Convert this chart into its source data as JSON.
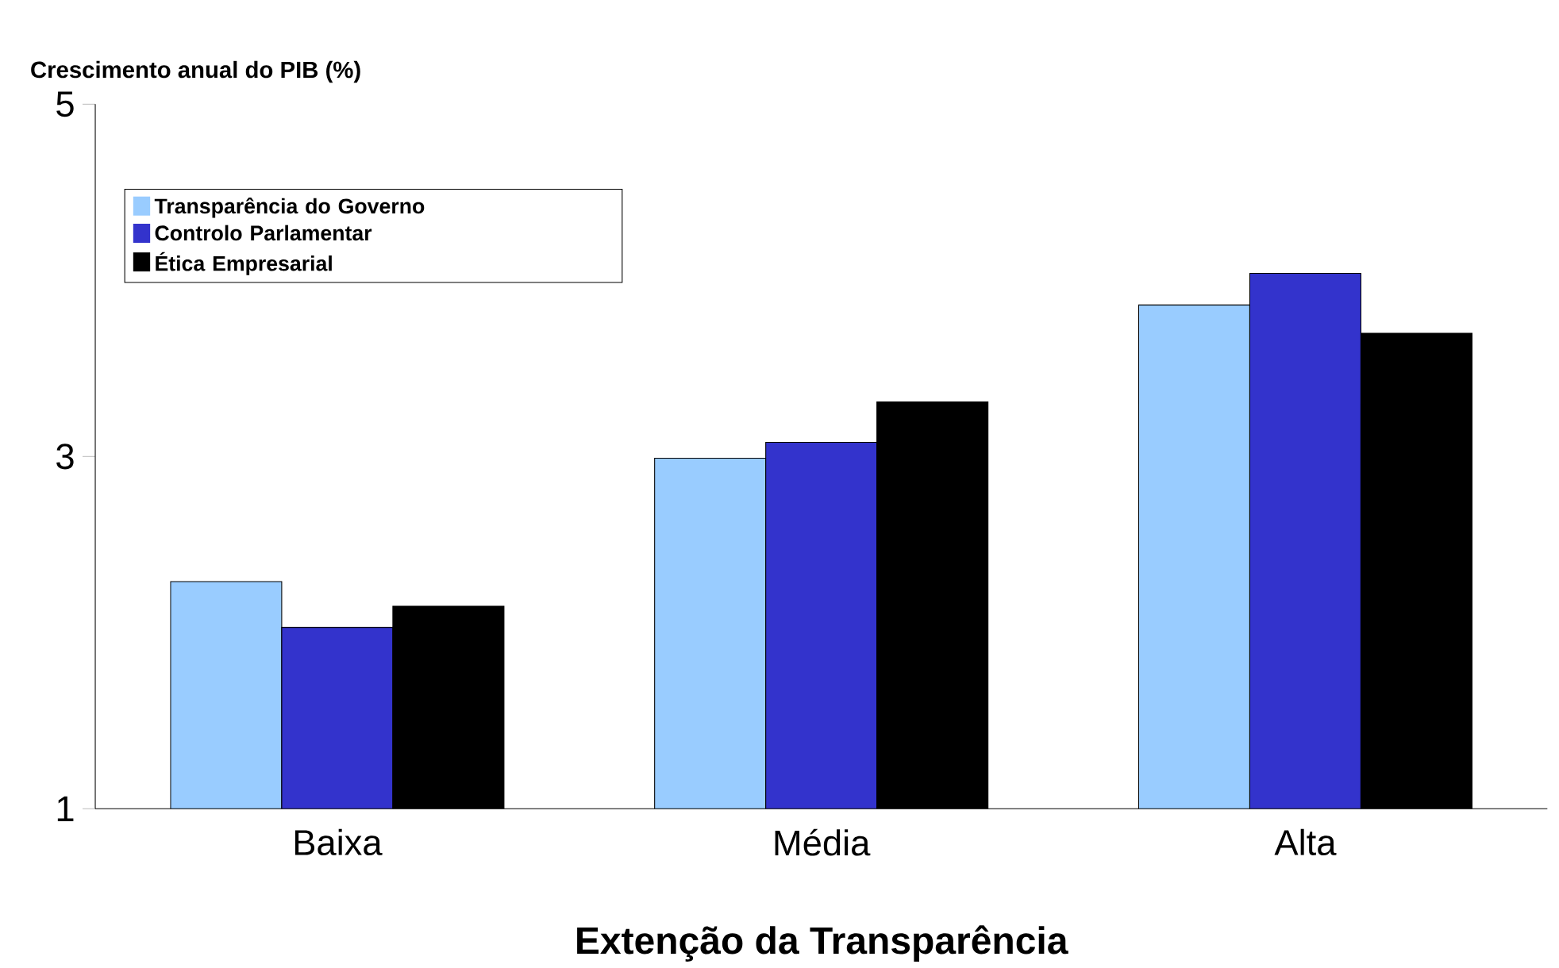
{
  "chart_data": {
    "type": "bar",
    "xlabel": "Extenção da Transparência",
    "ylabel": "Crescimento anual do PIB (%)",
    "categories": [
      "Baixa",
      "Média",
      "Alta"
    ],
    "series": [
      {
        "name": "Transparência do Governo",
        "color": "#99ccff",
        "values": [
          2.29,
          2.99,
          3.86
        ]
      },
      {
        "name": "Controlo Parlamentar",
        "color": "#3333cc",
        "values": [
          2.03,
          3.08,
          4.04
        ]
      },
      {
        "name": "Ética Empresarial",
        "color": "#000000",
        "values": [
          2.15,
          3.31,
          3.7
        ]
      }
    ],
    "ylim": [
      1,
      5
    ],
    "yticks": [
      1,
      3,
      5
    ],
    "grid": false,
    "legend": "top left"
  }
}
